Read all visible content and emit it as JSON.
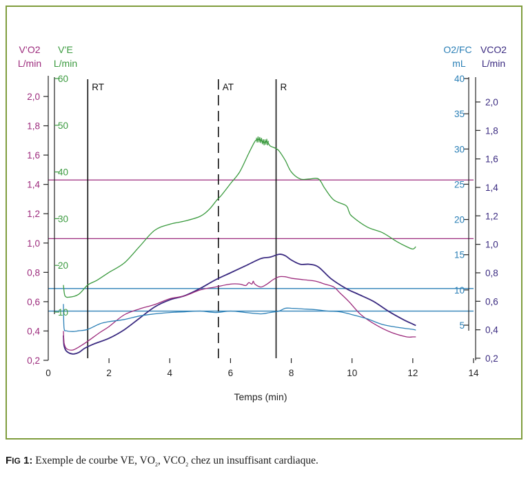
{
  "colors": {
    "frame": "#7f9c3c",
    "vo2": "#9c2a7c",
    "ve": "#3a9a3e",
    "o2fc": "#2a7fb6",
    "vco2": "#3a2a80",
    "axis": "#222222"
  },
  "caption": {
    "fig_first": "F",
    "fig_rest": "IG",
    "fig_num": "1:",
    "text_1": "Exemple de courbe VE, VO",
    "sub_1": "2",
    "text_2": ", VCO",
    "sub_2": "2",
    "text_3": " chez un insuffisant cardiaque."
  },
  "chart_data": {
    "type": "line",
    "xlabel": "Temps (min)",
    "xlim": [
      0,
      14
    ],
    "xticks": [
      "0",
      "2",
      "4",
      "6",
      "8",
      "10",
      "12",
      "14"
    ],
    "axes": {
      "vo2": {
        "label_1": "V’O2",
        "label_2": "L/min",
        "range": [
          0.2,
          2.0
        ],
        "ticks": [
          "0,2",
          "0,4",
          "0,6",
          "0,8",
          "1,0",
          "1,2",
          "1,4",
          "1,6",
          "1,8",
          "2,0"
        ]
      },
      "ve": {
        "label_1": "V’E",
        "label_2": "L/min",
        "range": [
          10,
          60
        ],
        "ticks": [
          "10",
          "20",
          "30",
          "40",
          "50",
          "60"
        ]
      },
      "o2fc": {
        "label_1": "O2/FC",
        "label_2": "mL",
        "range": [
          5,
          40
        ],
        "ticks": [
          "5",
          "10",
          "15",
          "20",
          "25",
          "30",
          "35",
          "40"
        ]
      },
      "vco2": {
        "label_1": "VCO2",
        "label_2": "L/min",
        "range": [
          0.2,
          2.0
        ],
        "ticks": [
          "0,2",
          "0,4",
          "0,6",
          "0,8",
          "1,0",
          "1,2",
          "1,4",
          "1,6",
          "1,8",
          "2,0"
        ]
      }
    },
    "markers": [
      {
        "label": "RT",
        "x": 1.3,
        "style": "solid"
      },
      {
        "label": "AT",
        "x": 5.6,
        "style": "dashed"
      },
      {
        "label": "R",
        "x": 7.5,
        "style": "solid"
      }
    ],
    "hlines": [
      {
        "axis": "vo2",
        "y": 1.43,
        "color": "vo2"
      },
      {
        "axis": "vo2",
        "y": 1.03,
        "color": "vo2"
      },
      {
        "axis": "o2fc",
        "y": 10.2,
        "color": "o2fc"
      },
      {
        "axis": "o2fc",
        "y": 7.0,
        "color": "o2fc"
      }
    ],
    "series": [
      {
        "axis": "ve",
        "color": "ve",
        "x": [
          0.5,
          0.55,
          0.7,
          1.0,
          1.3,
          1.6,
          2.0,
          2.5,
          3.0,
          3.5,
          4.0,
          4.5,
          5.0,
          5.3,
          5.55,
          5.7,
          6.0,
          6.3,
          6.6,
          6.8,
          6.9,
          7.0,
          7.1,
          7.2,
          7.3,
          7.4,
          7.5,
          7.6,
          7.8,
          8.0,
          8.3,
          8.6,
          8.9,
          9.1,
          9.4,
          9.8,
          9.9,
          10.0,
          10.5,
          11.0,
          11.5,
          11.8,
          12.0,
          12.1
        ],
        "y": [
          15.8,
          13.5,
          13.2,
          13.8,
          15.8,
          16.8,
          18.5,
          20.5,
          24,
          27.5,
          28.8,
          29.5,
          30.5,
          32,
          34,
          35,
          37.5,
          40,
          44,
          46.5,
          47,
          46.8,
          46.3,
          46.5,
          45.6,
          45.3,
          45,
          44.5,
          42.5,
          40,
          38.5,
          38.5,
          38.5,
          36.5,
          34,
          32.8,
          31.5,
          30.5,
          28.2,
          27,
          25,
          24,
          23.5,
          24
        ],
        "zig": [
          6.85,
          7.25
        ]
      },
      {
        "axis": "vco2",
        "color": "vco2",
        "x": [
          0.5,
          0.52,
          0.6,
          0.8,
          1.0,
          1.2,
          1.5,
          2.0,
          2.5,
          3.0,
          3.5,
          4.0,
          4.5,
          5.0,
          5.5,
          6.0,
          6.5,
          7.0,
          7.3,
          7.6,
          7.8,
          8.0,
          8.3,
          8.6,
          8.9,
          9.3,
          9.8,
          10.2,
          10.7,
          11.2,
          11.7,
          12.0,
          12.1
        ],
        "y": [
          0.36,
          0.29,
          0.25,
          0.23,
          0.24,
          0.27,
          0.3,
          0.34,
          0.4,
          0.48,
          0.56,
          0.61,
          0.64,
          0.69,
          0.75,
          0.8,
          0.85,
          0.9,
          0.91,
          0.93,
          0.92,
          0.89,
          0.86,
          0.86,
          0.84,
          0.76,
          0.69,
          0.65,
          0.6,
          0.53,
          0.47,
          0.44,
          0.43
        ]
      },
      {
        "axis": "vo2",
        "color": "vo2",
        "x": [
          0.5,
          0.52,
          0.6,
          0.8,
          1.0,
          1.3,
          1.7,
          2.0,
          2.5,
          3.0,
          3.5,
          4.0,
          4.5,
          5.0,
          5.5,
          6.0,
          6.3,
          6.5,
          6.6,
          6.7,
          6.75,
          6.8,
          7.0,
          7.2,
          7.4,
          7.6,
          7.8,
          8.0,
          8.4,
          8.8,
          9.1,
          9.4,
          9.6,
          9.9,
          10.3,
          10.8,
          11.3,
          11.8,
          12.0,
          12.1
        ],
        "y": [
          0.4,
          0.32,
          0.28,
          0.27,
          0.29,
          0.33,
          0.39,
          0.43,
          0.51,
          0.55,
          0.58,
          0.62,
          0.64,
          0.68,
          0.7,
          0.72,
          0.72,
          0.71,
          0.73,
          0.72,
          0.74,
          0.72,
          0.7,
          0.72,
          0.75,
          0.77,
          0.77,
          0.76,
          0.75,
          0.74,
          0.72,
          0.7,
          0.66,
          0.6,
          0.51,
          0.44,
          0.39,
          0.36,
          0.36,
          0.36
        ]
      },
      {
        "axis": "o2fc",
        "color": "o2fc",
        "x": [
          0.5,
          0.52,
          0.6,
          0.8,
          1.0,
          1.3,
          1.7,
          2.0,
          2.5,
          3.0,
          3.5,
          4.0,
          4.5,
          5.0,
          5.5,
          6.0,
          6.5,
          7.0,
          7.3,
          7.6,
          7.8,
          8.0,
          8.4,
          8.8,
          9.2,
          9.6,
          10.0,
          10.5,
          11.0,
          11.5,
          12.0,
          12.1
        ],
        "y": [
          8.0,
          4.6,
          4.2,
          4.1,
          4.2,
          4.4,
          5.2,
          5.5,
          5.8,
          6.3,
          6.6,
          6.8,
          6.9,
          7.0,
          6.8,
          7.0,
          6.8,
          6.6,
          6.8,
          7.0,
          7.4,
          7.4,
          7.3,
          7.2,
          7.0,
          6.9,
          6.5,
          5.9,
          5.1,
          4.7,
          4.4,
          4.3
        ]
      }
    ]
  }
}
